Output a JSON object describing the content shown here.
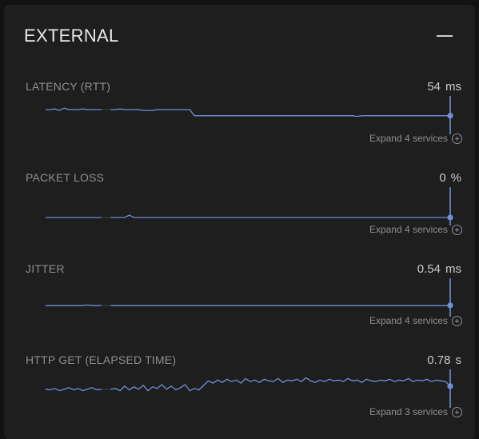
{
  "panel": {
    "title": "EXTERNAL",
    "collapse_icon": "minus-icon"
  },
  "colors": {
    "line": "#6f8fd9",
    "gap": "#3b3c3e",
    "marker": "#6f8fd9"
  },
  "metrics": [
    {
      "label": "LATENCY (RTT)",
      "value": "54",
      "unit": "ms",
      "expand_label": "Expand 4 services",
      "chart_data": {
        "type": "line",
        "series": [
          {
            "values": [
              62,
              62,
              63,
              61,
              64,
              62,
              62,
              62,
              63,
              62,
              62,
              62,
              62,
              62,
              62,
              62,
              63,
              62,
              62,
              62,
              62,
              61,
              61,
              61,
              62,
              62,
              62,
              62,
              62,
              62,
              62,
              62,
              54,
              54,
              54,
              54,
              54,
              54,
              54,
              54,
              54,
              54,
              54,
              54,
              54,
              54,
              54,
              54,
              54,
              54,
              54,
              54,
              54,
              54,
              54,
              54,
              54,
              54,
              54,
              54,
              54,
              54,
              54,
              54,
              54,
              54,
              54,
              53,
              54,
              54,
              54,
              54,
              54,
              54,
              54,
              54,
              54,
              54,
              54,
              54,
              54,
              54,
              54,
              54,
              54,
              54,
              54,
              54
            ],
            "gap": [
              12,
              14
            ]
          }
        ],
        "ylim": [
          40,
          80
        ]
      }
    },
    {
      "label": "PACKET LOSS",
      "value": "0",
      "unit": "%",
      "expand_label": "Expand 4 services",
      "chart_data": {
        "type": "line",
        "series": [
          {
            "values": [
              0,
              0,
              0,
              0,
              0,
              0,
              0,
              0,
              0,
              0,
              0,
              0,
              0,
              0,
              0,
              0,
              0,
              0,
              3,
              0,
              0,
              0,
              0,
              0,
              0,
              0,
              0,
              0,
              0,
              0,
              0,
              0,
              0,
              0,
              0,
              0,
              0,
              0,
              0,
              0,
              0,
              0,
              0,
              0,
              0,
              0,
              0,
              0,
              0,
              0,
              0,
              0,
              0,
              0,
              0,
              0,
              0,
              0,
              0,
              0,
              0,
              0,
              0,
              0,
              0,
              0,
              0,
              0,
              0,
              0,
              0,
              0,
              0,
              0,
              0,
              0,
              0,
              0,
              0,
              0,
              0,
              0,
              0,
              0,
              0,
              0,
              0,
              0
            ],
            "gap": [
              12,
              14
            ]
          }
        ],
        "ylim": [
          0,
          40
        ]
      }
    },
    {
      "label": "JITTER",
      "value": "0.54",
      "unit": "ms",
      "expand_label": "Expand 4 services",
      "chart_data": {
        "type": "line",
        "series": [
          {
            "values": [
              0.5,
              0.5,
              0.5,
              0.5,
              0.5,
              0.5,
              0.5,
              0.5,
              0.5,
              0.6,
              0.5,
              0.5,
              0.5,
              0.5,
              0.5,
              0.5,
              0.5,
              0.5,
              0.5,
              0.5,
              0.5,
              0.5,
              0.5,
              0.5,
              0.5,
              0.5,
              0.5,
              0.5,
              0.5,
              0.5,
              0.5,
              0.5,
              0.5,
              0.5,
              0.5,
              0.5,
              0.5,
              0.5,
              0.5,
              0.5,
              0.5,
              0.5,
              0.5,
              0.5,
              0.5,
              0.5,
              0.5,
              0.5,
              0.5,
              0.5,
              0.5,
              0.5,
              0.5,
              0.5,
              0.5,
              0.5,
              0.5,
              0.5,
              0.5,
              0.5,
              0.5,
              0.5,
              0.5,
              0.5,
              0.5,
              0.5,
              0.5,
              0.5,
              0.5,
              0.5,
              0.5,
              0.5,
              0.5,
              0.5,
              0.5,
              0.5,
              0.5,
              0.5,
              0.5,
              0.5,
              0.5,
              0.5,
              0.5,
              0.5,
              0.5,
              0.5,
              0.5,
              0.54
            ],
            "gap": [
              12,
              14
            ]
          }
        ],
        "ylim": [
          0,
          5
        ]
      }
    },
    {
      "label": "HTTP GET (ELAPSED TIME)",
      "value": "0.78",
      "unit": "s",
      "expand_label": "Expand 3 services",
      "chart_data": {
        "type": "line",
        "series": [
          {
            "values": [
              0.74,
              0.73,
              0.75,
              0.72,
              0.74,
              0.76,
              0.73,
              0.75,
              0.72,
              0.74,
              0.76,
              0.73,
              0.74,
              0.74,
              0.74,
              0.75,
              0.72,
              0.78,
              0.73,
              0.77,
              0.74,
              0.79,
              0.72,
              0.77,
              0.75,
              0.8,
              0.74,
              0.78,
              0.73,
              0.76,
              0.8,
              0.72,
              0.75,
              0.73,
              0.79,
              0.85,
              0.82,
              0.86,
              0.83,
              0.87,
              0.84,
              0.86,
              0.82,
              0.88,
              0.84,
              0.86,
              0.83,
              0.87,
              0.85,
              0.84,
              0.88,
              0.83,
              0.86,
              0.85,
              0.87,
              0.84,
              0.89,
              0.85,
              0.83,
              0.86,
              0.84,
              0.87,
              0.85,
              0.86,
              0.84,
              0.88,
              0.85,
              0.86,
              0.83,
              0.87,
              0.85,
              0.84,
              0.86,
              0.85,
              0.87,
              0.84,
              0.86,
              0.85,
              0.88,
              0.84,
              0.86,
              0.85,
              0.87,
              0.84,
              0.86,
              0.85,
              0.84,
              0.78
            ],
            "gap": [
              12,
              14
            ]
          }
        ],
        "ylim": [
          0.6,
          1.0
        ]
      }
    }
  ]
}
